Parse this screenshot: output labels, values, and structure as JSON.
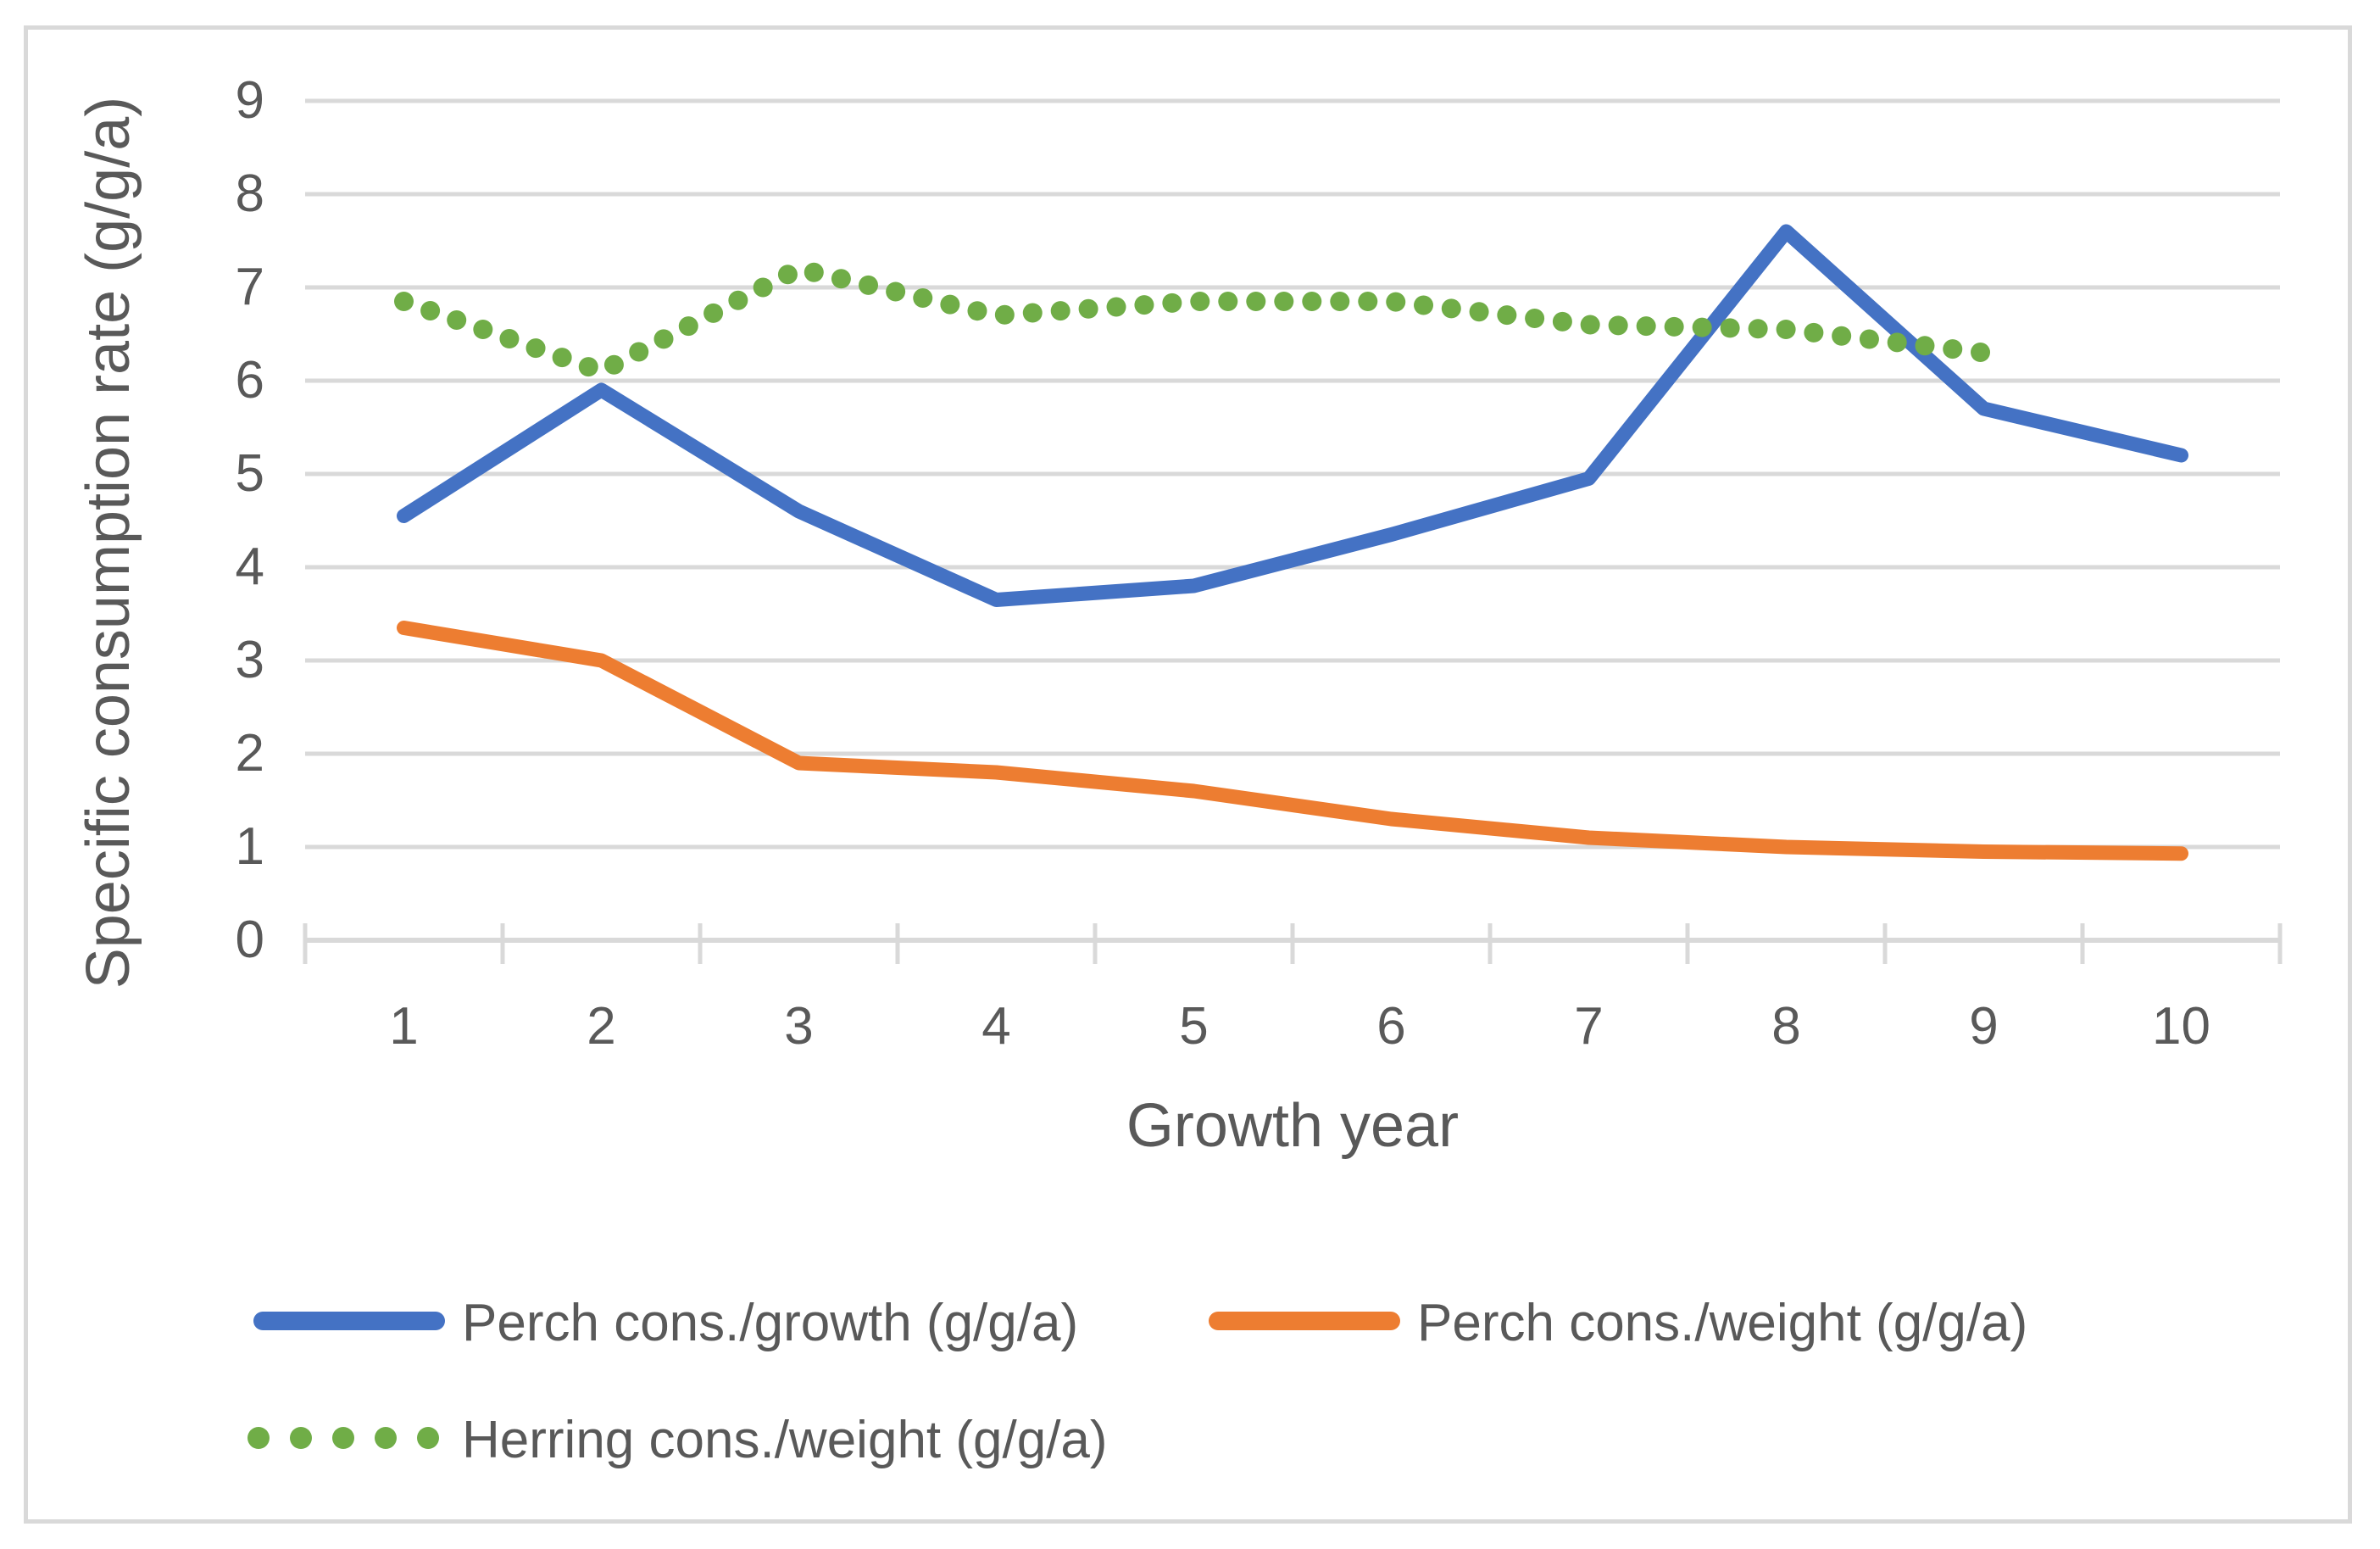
{
  "chart_data": {
    "type": "line",
    "title": "",
    "xlabel": "Growth year",
    "ylabel": "Specific consumption rate (g/g/a)",
    "x_categories": [
      1,
      2,
      3,
      4,
      5,
      6,
      7,
      8,
      9,
      10
    ],
    "yticks": [
      0,
      1,
      2,
      3,
      4,
      5,
      6,
      7,
      8,
      9
    ],
    "ylim": [
      0,
      9
    ],
    "grid": "horizontal",
    "legend_position": "bottom",
    "series": [
      {
        "name": "Perch cons./growth (g/g/a)",
        "color": "#4472C4",
        "style": "solid",
        "x": [
          1,
          2,
          3,
          4,
          5,
          6,
          7,
          8,
          9,
          10
        ],
        "values": [
          4.55,
          5.9,
          4.6,
          3.65,
          3.8,
          4.35,
          4.95,
          7.6,
          5.7,
          5.2
        ]
      },
      {
        "name": "Perch cons./weight (g/g/a)",
        "color": "#ED7D31",
        "style": "solid",
        "x": [
          1,
          2,
          3,
          4,
          5,
          6,
          7,
          8,
          9,
          10
        ],
        "values": [
          3.35,
          3.0,
          1.9,
          1.8,
          1.6,
          1.3,
          1.1,
          1.0,
          0.95,
          0.93
        ]
      },
      {
        "name": "Herring cons./weight (g/g/a)",
        "color": "#70AD47",
        "style": "dotted",
        "x": [
          1,
          2,
          3,
          4,
          5,
          6,
          7,
          8,
          9
        ],
        "values": [
          6.85,
          6.1,
          7.2,
          6.7,
          6.85,
          6.85,
          6.6,
          6.55,
          6.3
        ]
      }
    ],
    "colors": {
      "gridline": "#D9D9D9",
      "axis_line": "#D9D9D9",
      "tick_text": "#595959",
      "frame_border": "#D9D9D9",
      "background": "#FFFFFF"
    }
  }
}
